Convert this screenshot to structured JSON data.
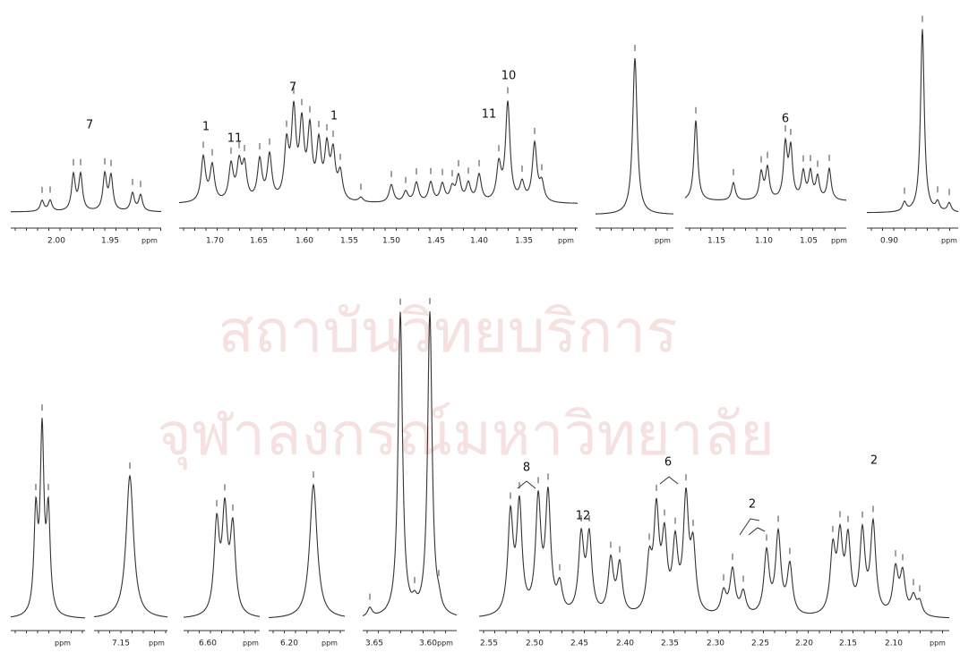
{
  "watermark": [
    "สถาบันวิทยบริการ",
    "จุฬาลงกรณ์มหาวิทยาลัย"
  ],
  "top_panels": [
    {
      "ticks": [
        "2.00",
        "1.95"
      ],
      "unit": "ppm",
      "labels": [
        "7"
      ]
    },
    {
      "ticks": [
        "1.70",
        "1.65",
        "1.60",
        "1.55",
        "1.50",
        "1.45",
        "1.40",
        "1.35"
      ],
      "unit": "ppm",
      "labels": [
        "1",
        "11",
        "7",
        "1",
        "10",
        "11"
      ]
    },
    {
      "ticks": [],
      "unit": "ppm",
      "labels": []
    },
    {
      "ticks": [
        "1.15",
        "1.10",
        "1.05"
      ],
      "unit": "ppm",
      "labels": [
        "6"
      ]
    },
    {
      "ticks": [
        "0.90"
      ],
      "unit": "ppm",
      "labels": []
    }
  ],
  "bottom_panels": [
    {
      "ticks": [],
      "unit": "ppm",
      "labels": []
    },
    {
      "ticks": [
        "7.15"
      ],
      "unit": "ppm",
      "labels": []
    },
    {
      "ticks": [
        "6.60"
      ],
      "unit": "ppm",
      "labels": []
    },
    {
      "ticks": [
        "6.20"
      ],
      "unit": "ppm",
      "labels": []
    },
    {
      "ticks": [
        "3.65",
        "3.60"
      ],
      "unit": "ppm",
      "labels": []
    },
    {
      "ticks": [
        "2.55",
        "2.50",
        "2.45",
        "2.40",
        "2.35",
        "2.30",
        "2.25",
        "2.20",
        "2.15",
        "2.10"
      ],
      "unit": "ppm",
      "labels": [
        "8",
        "12",
        "6",
        "2",
        "2"
      ]
    }
  ]
}
